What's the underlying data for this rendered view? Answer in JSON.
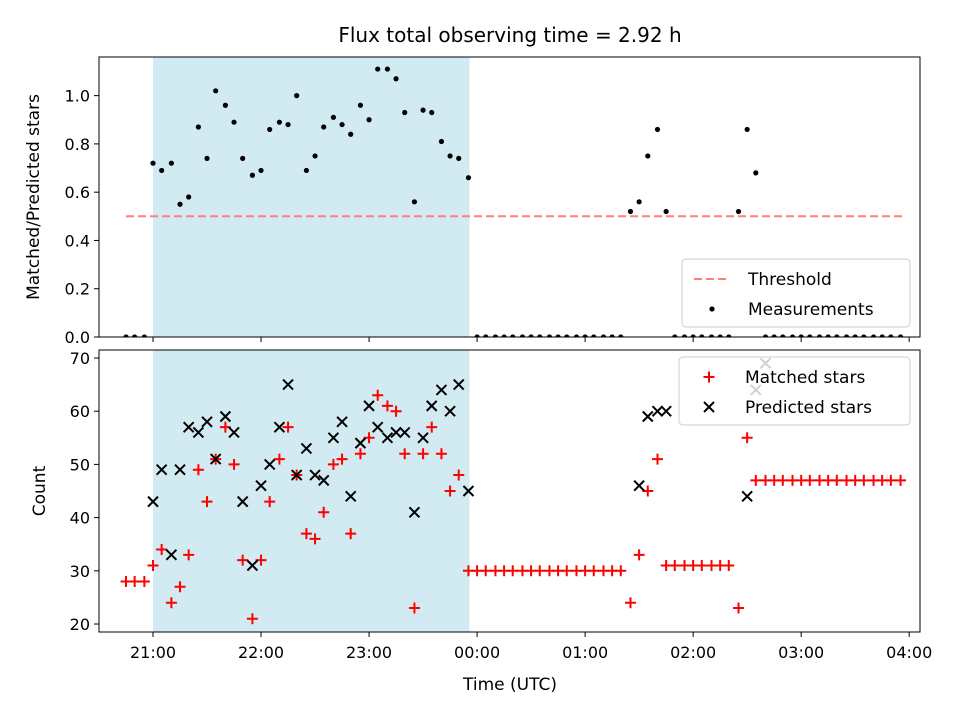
{
  "chart_data": {
    "title": "Flux total observing time = 2.92 h",
    "xlabel": "Time (UTC)",
    "x_units": "hours since 21:00 UTC (negative = before 21:00)",
    "xlim": [
      -0.5,
      7.1
    ],
    "xticks": [
      0,
      1,
      2,
      3,
      4,
      5,
      6,
      7
    ],
    "xtick_labels": [
      "21:00",
      "22:00",
      "23:00",
      "00:00",
      "01:00",
      "02:00",
      "03:00",
      "04:00"
    ],
    "shaded_interval": [
      0.0,
      2.93
    ],
    "shade_color": "#add8e6",
    "panels": [
      {
        "type": "scatter",
        "ylabel": "Matched/Predicted stars",
        "ylim": [
          0,
          1.16
        ],
        "yticks": [
          0.0,
          0.2,
          0.4,
          0.6,
          0.8,
          1.0
        ],
        "ytick_labels": [
          "0.0",
          "0.2",
          "0.4",
          "0.6",
          "0.8",
          "1.0"
        ],
        "legend": {
          "placement": "lower-right",
          "entries": [
            "Threshold",
            "Measurements"
          ]
        },
        "threshold": {
          "name": "Threshold",
          "value": 0.5,
          "x_range": [
            -0.25,
            6.95
          ],
          "color": "#ff7f7f",
          "style": "dashed"
        },
        "measurements": {
          "name": "Measurements",
          "color": "#000000",
          "x": [
            -0.25,
            -0.17,
            -0.08,
            0.0,
            0.08,
            0.17,
            0.25,
            0.33,
            0.42,
            0.5,
            0.58,
            0.67,
            0.75,
            0.83,
            0.92,
            1.0,
            1.08,
            1.17,
            1.25,
            1.33,
            1.42,
            1.5,
            1.58,
            1.67,
            1.75,
            1.83,
            1.92,
            2.0,
            2.08,
            2.17,
            2.25,
            2.33,
            2.42,
            2.5,
            2.58,
            2.67,
            2.75,
            2.83,
            2.92,
            3.0,
            3.08,
            3.17,
            3.25,
            3.33,
            3.42,
            3.5,
            3.58,
            3.67,
            3.75,
            3.83,
            3.92,
            4.0,
            4.08,
            4.17,
            4.25,
            4.33,
            4.42,
            4.5,
            4.58,
            4.67,
            4.75,
            4.83,
            4.92,
            5.0,
            5.08,
            5.17,
            5.25,
            5.33,
            5.42,
            5.5,
            5.58,
            5.67,
            5.75,
            5.83,
            5.92,
            6.0,
            6.08,
            6.17,
            6.25,
            6.33,
            6.42,
            6.5,
            6.58,
            6.67,
            6.75,
            6.83,
            6.92
          ],
          "y": [
            0.0,
            0.0,
            0.0,
            0.72,
            0.69,
            0.72,
            0.55,
            0.58,
            0.87,
            0.74,
            1.02,
            0.96,
            0.89,
            0.74,
            0.67,
            0.69,
            0.86,
            0.89,
            0.88,
            1.0,
            0.69,
            0.75,
            0.87,
            0.91,
            0.88,
            0.84,
            0.96,
            0.9,
            1.11,
            1.11,
            1.07,
            0.93,
            0.56,
            0.94,
            0.93,
            0.81,
            0.75,
            0.74,
            0.66,
            0.0,
            0.0,
            0.0,
            0.0,
            0.0,
            0.0,
            0.0,
            0.0,
            0.0,
            0.0,
            0.0,
            0.0,
            0.0,
            0.0,
            0.0,
            0.0,
            0.0,
            0.52,
            0.56,
            0.75,
            0.86,
            0.52,
            0.0,
            0.0,
            0.0,
            0.0,
            0.0,
            0.0,
            0.0,
            0.52,
            0.86,
            0.68,
            0.0,
            0.0,
            0.0,
            0.0,
            0.0,
            0.0,
            0.0,
            0.0,
            0.0,
            0.0,
            0.0,
            0.0,
            0.0,
            0.0,
            0.0,
            0.0
          ]
        }
      },
      {
        "type": "scatter",
        "ylabel": "Count",
        "ylim": [
          18.5,
          71.5
        ],
        "yticks": [
          20,
          30,
          40,
          50,
          60,
          70
        ],
        "ytick_labels": [
          "20",
          "30",
          "40",
          "50",
          "60",
          "70"
        ],
        "legend": {
          "placement": "upper-right",
          "entries": [
            "Matched stars",
            "Predicted stars"
          ]
        },
        "series": [
          {
            "name": "Matched stars",
            "marker": "plus",
            "color": "#ff0000",
            "x": [
              -0.25,
              -0.17,
              -0.08,
              0.0,
              0.08,
              0.17,
              0.25,
              0.33,
              0.42,
              0.5,
              0.58,
              0.67,
              0.75,
              0.83,
              0.92,
              1.0,
              1.08,
              1.17,
              1.25,
              1.33,
              1.42,
              1.5,
              1.58,
              1.67,
              1.75,
              1.83,
              1.92,
              2.0,
              2.08,
              2.17,
              2.25,
              2.33,
              2.42,
              2.5,
              2.58,
              2.67,
              2.75,
              2.83,
              2.92,
              3.0,
              3.08,
              3.17,
              3.25,
              3.33,
              3.42,
              3.5,
              3.58,
              3.67,
              3.75,
              3.83,
              3.92,
              4.0,
              4.08,
              4.17,
              4.25,
              4.33,
              4.42,
              4.5,
              4.58,
              4.67,
              4.75,
              4.83,
              4.92,
              5.0,
              5.08,
              5.17,
              5.25,
              5.33,
              5.42,
              5.5,
              5.58,
              5.67,
              5.75,
              5.83,
              5.92,
              6.0,
              6.08,
              6.17,
              6.25,
              6.33,
              6.42,
              6.5,
              6.58,
              6.67,
              6.75,
              6.83,
              6.92
            ],
            "y": [
              28,
              28,
              28,
              31,
              34,
              24,
              27,
              33,
              49,
              43,
              51,
              57,
              50,
              32,
              21,
              32,
              43,
              51,
              57,
              48,
              37,
              36,
              41,
              50,
              51,
              37,
              52,
              55,
              63,
              61,
              60,
              52,
              23,
              52,
              57,
              52,
              45,
              48,
              30,
              30,
              30,
              30,
              30,
              30,
              30,
              30,
              30,
              30,
              30,
              30,
              30,
              30,
              30,
              30,
              30,
              30,
              24,
              33,
              45,
              51,
              31,
              31,
              31,
              31,
              31,
              31,
              31,
              31,
              23,
              55,
              47,
              47,
              47,
              47,
              47,
              47,
              47,
              47,
              47,
              47,
              47,
              47,
              47,
              47,
              47,
              47,
              47
            ]
          },
          {
            "name": "Predicted stars",
            "marker": "x",
            "color": "#000000",
            "x": [
              0.0,
              0.08,
              0.17,
              0.25,
              0.33,
              0.42,
              0.5,
              0.58,
              0.67,
              0.75,
              0.83,
              0.92,
              1.0,
              1.08,
              1.17,
              1.25,
              1.33,
              1.42,
              1.5,
              1.58,
              1.67,
              1.75,
              1.83,
              1.92,
              2.0,
              2.08,
              2.17,
              2.25,
              2.33,
              2.42,
              2.5,
              2.58,
              2.67,
              2.75,
              2.83,
              2.92,
              4.5,
              4.58,
              4.67,
              4.75,
              5.5,
              5.58,
              5.67
            ],
            "y": [
              43,
              49,
              33,
              49,
              57,
              56,
              58,
              51,
              59,
              56,
              43,
              31,
              46,
              50,
              57,
              65,
              48,
              53,
              48,
              47,
              55,
              58,
              44,
              54,
              61,
              57,
              55,
              56,
              56,
              41,
              55,
              61,
              64,
              60,
              65,
              45,
              46,
              59,
              60,
              60,
              44,
              64,
              69
            ]
          }
        ]
      }
    ]
  }
}
